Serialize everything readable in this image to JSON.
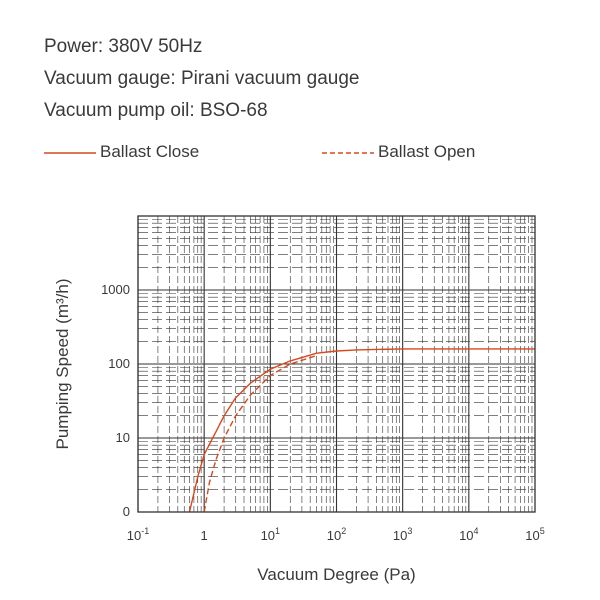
{
  "header": {
    "specs": [
      "Power: 380V 50Hz",
      "Vacuum gauge: Pirani vacuum gauge",
      "Vacuum pump oil: BSO-68"
    ]
  },
  "colors": {
    "series": "#d9481c",
    "grid": "#333333",
    "text": "#3a3a3a"
  },
  "chart_data": {
    "type": "line",
    "xlabel": "Vacuum Degree (Pa)",
    "ylabel": "Pumping Speed (m³/h)",
    "xscale": "log",
    "yscale": "log",
    "xlim": [
      0.1,
      100000
    ],
    "ylim_decades": 4,
    "x_ticks": [
      {
        "value": 0.1,
        "base": "10",
        "exp": "-1"
      },
      {
        "value": 1,
        "base": "1",
        "exp": ""
      },
      {
        "value": 10,
        "base": "10",
        "exp": "1"
      },
      {
        "value": 100,
        "base": "10",
        "exp": "2"
      },
      {
        "value": 1000,
        "base": "10",
        "exp": "3"
      },
      {
        "value": 10000,
        "base": "10",
        "exp": "4"
      },
      {
        "value": 100000,
        "base": "10",
        "exp": "5"
      }
    ],
    "y_ticks": [
      "0",
      "10",
      "100",
      "1000"
    ],
    "grid": true,
    "legend_position": "top",
    "series": [
      {
        "name": "Ballast Close",
        "style": "solid",
        "x": [
          0.6,
          0.8,
          1,
          1.5,
          2,
          3,
          5,
          10,
          20,
          50,
          100,
          200,
          1000,
          100000
        ],
        "y": [
          1,
          3,
          6,
          12,
          20,
          35,
          55,
          85,
          110,
          140,
          150,
          155,
          160,
          160
        ]
      },
      {
        "name": "Ballast Open",
        "style": "dashed",
        "x": [
          1,
          1.2,
          1.5,
          2,
          3,
          5,
          10,
          20,
          50
        ],
        "y": [
          1,
          2.5,
          5,
          10,
          20,
          38,
          70,
          100,
          130
        ]
      }
    ]
  }
}
